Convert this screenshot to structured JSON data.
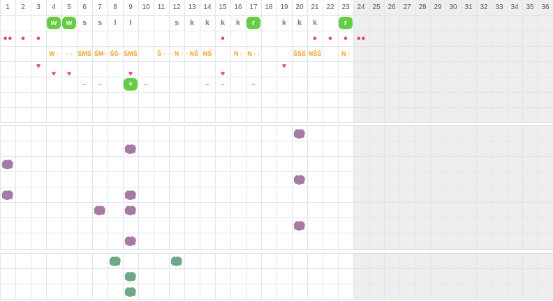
{
  "columns": [
    "1",
    "2",
    "3",
    "4",
    "5",
    "6",
    "7",
    "8",
    "9",
    "10",
    "11",
    "12",
    "13",
    "14",
    "15",
    "16",
    "17",
    "18",
    "19",
    "20",
    "21",
    "22",
    "23",
    "24",
    "25",
    "26",
    "27",
    "28",
    "29",
    "30",
    "31",
    "32",
    "33",
    "34",
    "35",
    "36"
  ],
  "row1": [
    {
      "col": 4,
      "text": "w",
      "style": "green"
    },
    {
      "col": 5,
      "text": "w",
      "style": "green"
    },
    {
      "col": 6,
      "text": "s",
      "style": "letter"
    },
    {
      "col": 7,
      "text": "s",
      "style": "letter"
    },
    {
      "col": 8,
      "text": "l",
      "style": "letter"
    },
    {
      "col": 9,
      "text": "l",
      "style": "letter"
    },
    {
      "col": 12,
      "text": "s",
      "style": "letter"
    },
    {
      "col": 13,
      "text": "k",
      "style": "letter"
    },
    {
      "col": 14,
      "text": "k",
      "style": "letter"
    },
    {
      "col": 15,
      "text": "k",
      "style": "letter"
    },
    {
      "col": 16,
      "text": "k",
      "style": "letter"
    },
    {
      "col": 17,
      "text": "r",
      "style": "green"
    },
    {
      "col": 19,
      "text": "k",
      "style": "letter"
    },
    {
      "col": 20,
      "text": "k",
      "style": "letter"
    },
    {
      "col": 21,
      "text": "k",
      "style": "letter"
    },
    {
      "col": 23,
      "text": "r",
      "style": "green"
    }
  ],
  "row2": [
    {
      "col": 1,
      "text": "●●",
      "style": "red"
    },
    {
      "col": 2,
      "text": "●",
      "style": "red"
    },
    {
      "col": 3,
      "text": "●",
      "style": "red"
    },
    {
      "col": 15,
      "text": "●",
      "style": "red"
    },
    {
      "col": 21,
      "text": "●",
      "style": "red"
    },
    {
      "col": 22,
      "text": "●",
      "style": "red"
    },
    {
      "col": 23,
      "text": "●",
      "style": "red"
    },
    {
      "col": 24,
      "text": "●●",
      "style": "red"
    }
  ],
  "row3": [
    {
      "col": 4,
      "text": "W -",
      "style": "orange"
    },
    {
      "col": 5,
      "text": "- -",
      "style": "orange"
    },
    {
      "col": 6,
      "text": "ŚMŚ",
      "style": "orange"
    },
    {
      "col": 7,
      "text": "ŚM-",
      "style": "orange"
    },
    {
      "col": 8,
      "text": "ŚŚ-",
      "style": "orange"
    },
    {
      "col": 9,
      "text": "ŚMŚ",
      "style": "orange"
    },
    {
      "col": 11,
      "text": "Ś -",
      "style": "orange"
    },
    {
      "col": 12,
      "text": "- N -",
      "style": "orange"
    },
    {
      "col": 13,
      "text": "- NŚ",
      "style": "orange"
    },
    {
      "col": 14,
      "text": "NŚ",
      "style": "orange"
    },
    {
      "col": 16,
      "text": "N -",
      "style": "orange"
    },
    {
      "col": 17,
      "text": "N - -",
      "style": "orange"
    },
    {
      "col": 20,
      "text": "ŚŚŚ",
      "style": "orange"
    },
    {
      "col": 21,
      "text": "NŚŚ",
      "style": "orange"
    },
    {
      "col": 23,
      "text": "N -",
      "style": "orange"
    }
  ],
  "row4": [
    {
      "col": 3,
      "text": "♥",
      "style": "pink"
    },
    {
      "col": 15,
      "text": "",
      "style": "pink"
    },
    {
      "col": 19,
      "text": "♥",
      "style": "pink"
    }
  ],
  "row5": [
    {
      "col": 4,
      "text": "♥",
      "style": "pink"
    },
    {
      "col": 5,
      "text": "♥",
      "style": "pink"
    },
    {
      "col": 9,
      "text": "♥",
      "style": "pink"
    },
    {
      "col": 15,
      "text": "♥",
      "style": "pink"
    }
  ],
  "row6": [
    {
      "col": 6,
      "text": "–",
      "style": "orange"
    },
    {
      "col": 7,
      "text": "–",
      "style": "orange"
    },
    {
      "col": 9,
      "text": "+",
      "style": "green"
    },
    {
      "col": 10,
      "text": "–",
      "style": "orange"
    },
    {
      "col": 14,
      "text": "–",
      "style": "orange"
    },
    {
      "col": 15,
      "text": "–",
      "style": "orange"
    },
    {
      "col": 17,
      "text": "–",
      "style": "orange"
    }
  ],
  "purple_blobs": [
    {
      "col": 20,
      "row": 0
    },
    {
      "col": 9,
      "row": 1
    },
    {
      "col": 1,
      "row": 2
    },
    {
      "col": 20,
      "row": 3
    },
    {
      "col": 1,
      "row": 4
    },
    {
      "col": 9,
      "row": 4
    },
    {
      "col": 7,
      "row": 5
    },
    {
      "col": 9,
      "row": 5
    },
    {
      "col": 20,
      "row": 6
    },
    {
      "col": 9,
      "row": 7
    }
  ],
  "green_blobs": [
    {
      "col": 8,
      "row": 0
    },
    {
      "col": 12,
      "row": 0
    },
    {
      "col": 9,
      "row": 1
    },
    {
      "col": 9,
      "row": 2
    }
  ],
  "colors": {
    "green": "#66cc44",
    "purple_blob": "#a77aa6",
    "green_blob": "#6fa888",
    "red": "#e05060",
    "pink": "#e85070",
    "orange": "#f0a020",
    "letter": "#a06a88"
  }
}
